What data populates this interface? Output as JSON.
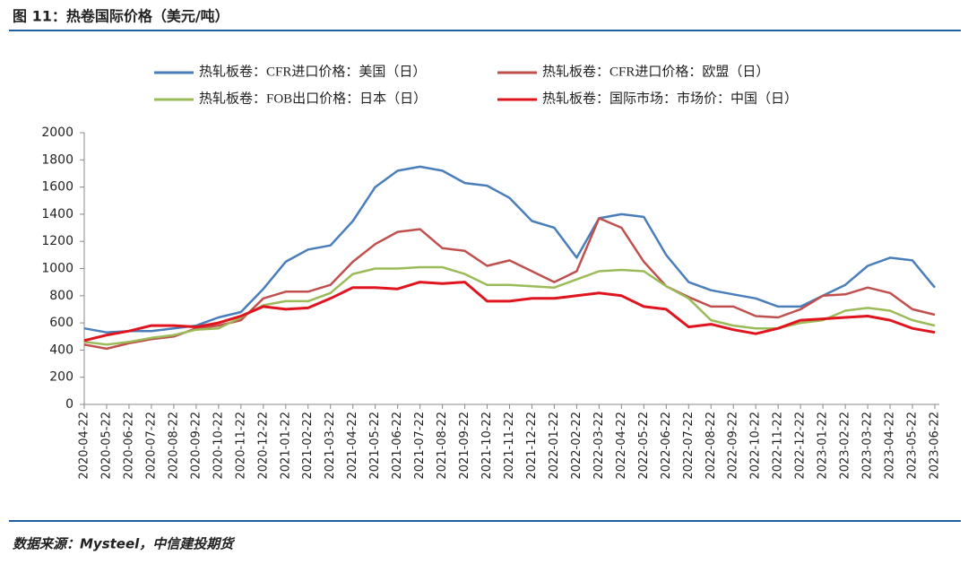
{
  "chart_data": {
    "type": "line",
    "title": "图 11：热卷国际价格（美元/吨）",
    "source": "数据来源：Mysteel，中信建投期货",
    "categories": [
      "2020-04-22",
      "2020-05-22",
      "2020-06-22",
      "2020-07-22",
      "2020-08-22",
      "2020-09-22",
      "2020-10-22",
      "2020-11-22",
      "2020-12-22",
      "2021-01-22",
      "2021-02-22",
      "2021-03-22",
      "2021-04-22",
      "2021-05-22",
      "2021-06-22",
      "2021-07-22",
      "2021-08-22",
      "2021-09-22",
      "2021-10-22",
      "2021-11-22",
      "2021-12-22",
      "2022-01-22",
      "2022-02-22",
      "2022-03-22",
      "2022-04-22",
      "2022-05-22",
      "2022-06-22",
      "2022-07-22",
      "2022-08-22",
      "2022-09-22",
      "2022-10-22",
      "2022-11-22",
      "2022-12-22",
      "2023-01-22",
      "2023-02-22",
      "2023-03-22",
      "2023-04-22",
      "2023-05-22",
      "2023-06-22"
    ],
    "series": [
      {
        "name": "热轧板卷：CFR进口价格：美国（日）",
        "color": "#4a7ebb",
        "values": [
          560,
          530,
          540,
          540,
          560,
          580,
          640,
          680,
          850,
          1050,
          1140,
          1170,
          1350,
          1600,
          1720,
          1750,
          1720,
          1630,
          1610,
          1520,
          1350,
          1300,
          1080,
          1370,
          1400,
          1380,
          1100,
          900,
          840,
          810,
          780,
          720,
          720,
          800,
          880,
          1020,
          1080,
          1060,
          860
        ]
      },
      {
        "name": "热轧板卷：CFR进口价格：欧盟（日）",
        "color": "#c0504d",
        "values": [
          440,
          410,
          450,
          480,
          500,
          560,
          580,
          620,
          780,
          830,
          830,
          880,
          1050,
          1180,
          1270,
          1290,
          1150,
          1130,
          1020,
          1060,
          980,
          900,
          980,
          1370,
          1300,
          1050,
          870,
          790,
          720,
          720,
          650,
          640,
          700,
          800,
          810,
          860,
          820,
          700,
          660
        ]
      },
      {
        "name": "热轧板卷：FOB出口价格：日本（日）",
        "color": "#9bbb59",
        "values": [
          460,
          440,
          460,
          490,
          510,
          550,
          560,
          640,
          730,
          760,
          760,
          820,
          960,
          1000,
          1000,
          1010,
          1010,
          960,
          880,
          880,
          870,
          860,
          920,
          980,
          990,
          980,
          870,
          780,
          620,
          580,
          560,
          560,
          600,
          620,
          690,
          710,
          690,
          620,
          580
        ]
      },
      {
        "name": "热轧板卷：国际市场：市场价：中国（日）",
        "color": "#e0141e",
        "values": [
          470,
          510,
          540,
          580,
          580,
          570,
          600,
          650,
          720,
          700,
          710,
          780,
          860,
          860,
          850,
          900,
          890,
          900,
          760,
          760,
          780,
          780,
          800,
          820,
          800,
          720,
          700,
          570,
          590,
          550,
          520,
          560,
          620,
          630,
          640,
          650,
          620,
          560,
          530
        ]
      }
    ],
    "ylim": [
      0,
      2000
    ],
    "yticks": [
      0,
      200,
      400,
      600,
      800,
      1000,
      1200,
      1400,
      1600,
      1800,
      2000
    ],
    "grid": false
  }
}
